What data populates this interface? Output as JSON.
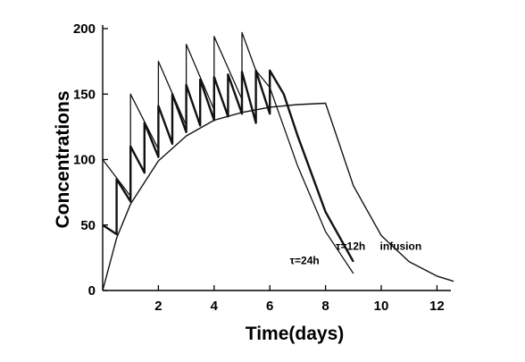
{
  "chart_data": {
    "type": "line",
    "title": "",
    "xlabel": "Time(days)",
    "ylabel": "Concentrations",
    "xlim": [
      0,
      12.5
    ],
    "ylim": [
      0,
      200
    ],
    "x_ticks": [
      2,
      4,
      6,
      8,
      10,
      12
    ],
    "y_ticks": [
      0,
      50,
      100,
      150,
      200
    ],
    "grid": false,
    "legend": "none",
    "series": [
      {
        "name": "τ=24h",
        "label_at": [
          7.25,
          20
        ],
        "points": [
          [
            0,
            100
          ],
          [
            1,
            72
          ],
          [
            1,
            150
          ],
          [
            2,
            108
          ],
          [
            2,
            175
          ],
          [
            3,
            126
          ],
          [
            3,
            188
          ],
          [
            4,
            138
          ],
          [
            4,
            194
          ],
          [
            5,
            146
          ],
          [
            5,
            197
          ],
          [
            5.5,
            168
          ],
          [
            6,
            155
          ],
          [
            7,
            95
          ],
          [
            8,
            45
          ],
          [
            9,
            13
          ]
        ]
      },
      {
        "name": "τ=12h",
        "label_at": [
          8.9,
          31
        ],
        "points": [
          [
            0,
            50
          ],
          [
            0.5,
            43
          ],
          [
            0.5,
            85
          ],
          [
            1,
            68
          ],
          [
            1,
            110
          ],
          [
            1.5,
            90
          ],
          [
            1.5,
            128
          ],
          [
            2,
            102
          ],
          [
            2,
            141
          ],
          [
            2.5,
            112
          ],
          [
            2.5,
            150
          ],
          [
            3,
            121
          ],
          [
            3,
            157
          ],
          [
            3.5,
            126
          ],
          [
            3.5,
            161
          ],
          [
            4,
            130
          ],
          [
            4,
            163
          ],
          [
            4.5,
            133
          ],
          [
            4.5,
            165
          ],
          [
            5,
            135
          ],
          [
            5,
            167
          ],
          [
            5.5,
            128
          ],
          [
            5.5,
            168
          ],
          [
            6,
            135
          ],
          [
            6,
            168
          ],
          [
            6.5,
            150
          ],
          [
            7,
            118
          ],
          [
            8,
            60
          ],
          [
            9,
            22
          ]
        ]
      },
      {
        "name": "infusion",
        "label_at": [
          10.7,
          31
        ],
        "points": [
          [
            0,
            0
          ],
          [
            0.5,
            40
          ],
          [
            1,
            66
          ],
          [
            2,
            99
          ],
          [
            3,
            118
          ],
          [
            4,
            130
          ],
          [
            5,
            136
          ],
          [
            6,
            140
          ],
          [
            7,
            142
          ],
          [
            8,
            143
          ],
          [
            9,
            80
          ],
          [
            10,
            42
          ],
          [
            11,
            22
          ],
          [
            12,
            11
          ],
          [
            12.6,
            7
          ]
        ]
      }
    ]
  }
}
